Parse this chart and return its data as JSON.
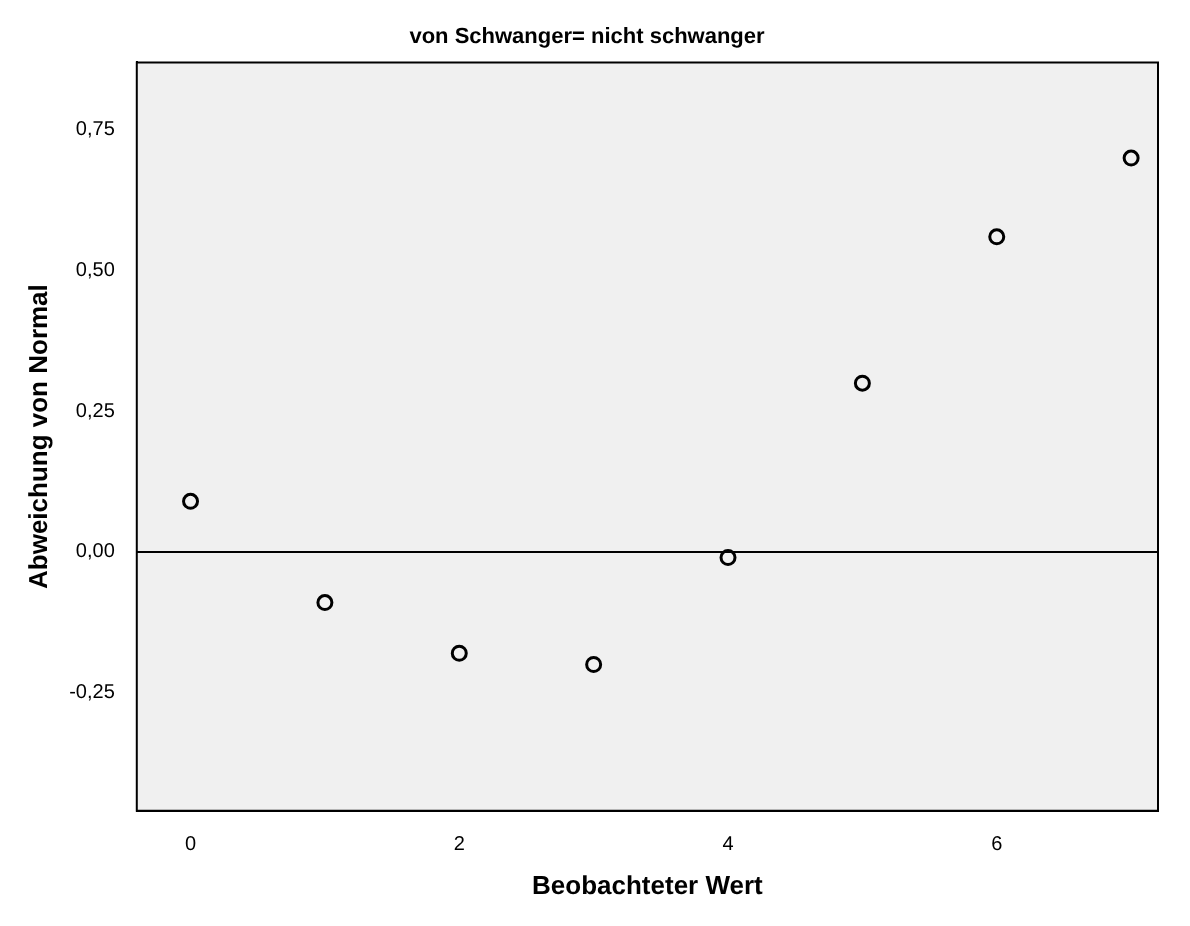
{
  "chart_data": {
    "type": "scatter",
    "title": "von Schwanger= nicht schwanger",
    "xlabel": "Beobachteter Wert",
    "ylabel": "Abweichung von Normal",
    "x": [
      0,
      1,
      2,
      3,
      4,
      5,
      6,
      7
    ],
    "series": [
      {
        "color": "#000000",
        "values": [
          0.09,
          -0.09,
          -0.18,
          -0.2,
          -0.01,
          0.3,
          0.56,
          0.7
        ]
      }
    ],
    "xlim": [
      -0.4,
      7.2
    ],
    "xticks": [
      0,
      2,
      4,
      6
    ],
    "ylim": [
      -0.46,
      0.87
    ],
    "yticks": [
      {
        "value": -0.25,
        "label": "-0,25"
      },
      {
        "value": 0,
        "label": "0,00"
      },
      {
        "value": 0.25,
        "label": "0,25"
      },
      {
        "value": 0.5,
        "label": "0,50"
      },
      {
        "value": 0.75,
        "label": "0,75"
      }
    ],
    "ref_lines": [
      {
        "axis": "y",
        "value": 0,
        "label": null,
        "color": "#000000"
      }
    ],
    "grid": false,
    "legend": false,
    "marker": "circle"
  }
}
